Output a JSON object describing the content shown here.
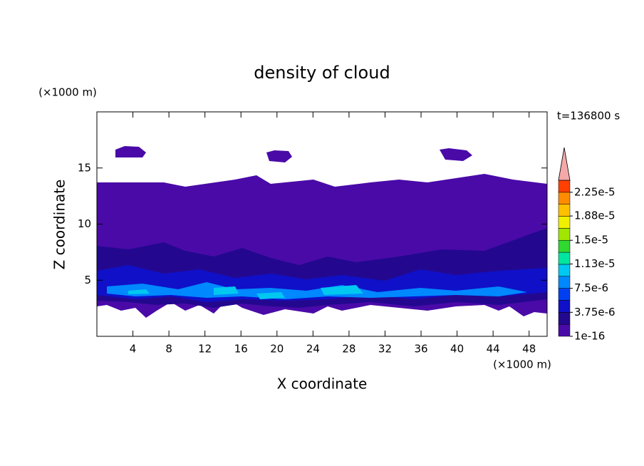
{
  "chart_data": {
    "type": "contour",
    "title": "density of cloud",
    "x_label": "X coordinate",
    "y_label": "Z coordinate",
    "x_unit": "(×1000 m)",
    "y_unit": "(×1000 m)",
    "time_label": "t=136800 s",
    "xlim": [
      0,
      50
    ],
    "ylim": [
      0,
      20
    ],
    "xticks": [
      4,
      8,
      12,
      16,
      20,
      24,
      28,
      32,
      36,
      40,
      44,
      48
    ],
    "yticks": [
      5,
      10,
      15
    ],
    "colorbar": {
      "clim": [
        0,
        2.4375e-05
      ],
      "colors": [
        "#4a0aa8",
        "#23088f",
        "#1010c8",
        "#0040f0",
        "#0088ff",
        "#00c8f0",
        "#00e6a0",
        "#30d830",
        "#a0e600",
        "#f0f000",
        "#ffc000",
        "#ff8c00",
        "#ff4000"
      ],
      "extend_color": "#f4a8a8",
      "ticks": [
        {
          "value": 1e-16,
          "label": "1e-16"
        },
        {
          "value": 3.75e-06,
          "label": "3.75e-6"
        },
        {
          "value": 7.5e-06,
          "label": "7.5e-6"
        },
        {
          "value": 1.13e-05,
          "label": "1.13e-5"
        },
        {
          "value": 1.5e-05,
          "label": "1.5e-5"
        },
        {
          "value": 1.88e-05,
          "label": "1.88e-5"
        },
        {
          "value": 2.25e-05,
          "label": "2.25e-5"
        }
      ]
    }
  }
}
